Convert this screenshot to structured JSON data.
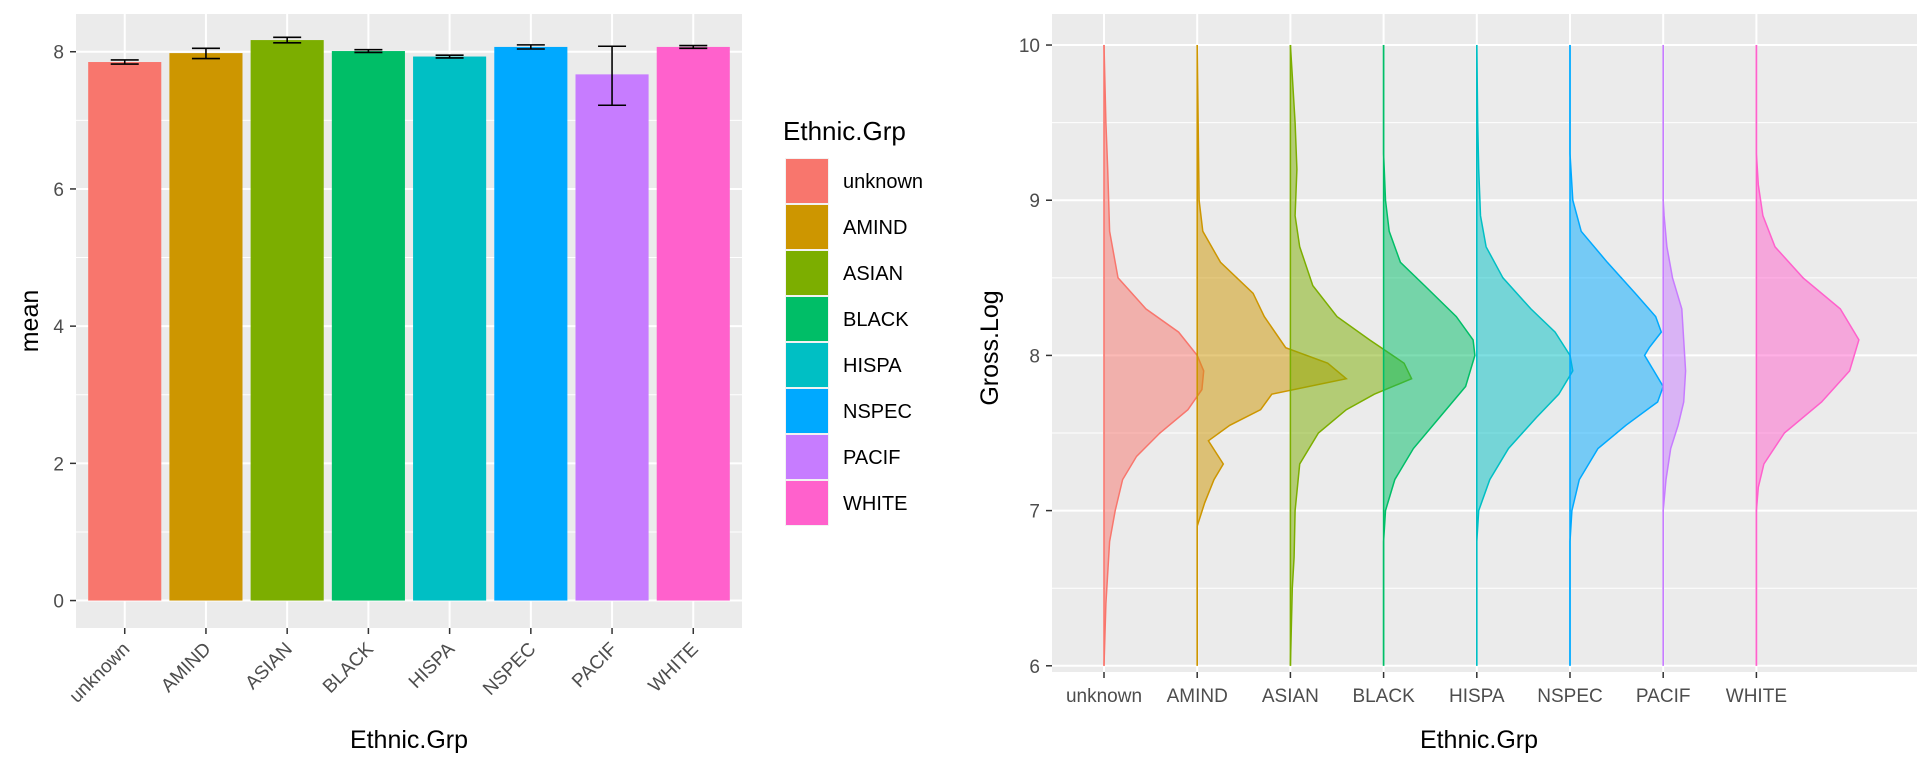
{
  "chart_data": [
    {
      "type": "bar",
      "title": "",
      "xlabel": "Ethnic.Grp",
      "ylabel": "mean",
      "ylim": [
        -0.4,
        8.55
      ],
      "yticks": [
        0,
        2,
        4,
        6,
        8
      ],
      "grid": true,
      "categories": [
        "unknown",
        "AMIND",
        "ASIAN",
        "BLACK",
        "HISPA",
        "NSPEC",
        "PACIF",
        "WHITE"
      ],
      "values": [
        7.85,
        7.98,
        8.17,
        8.01,
        7.93,
        8.07,
        7.67,
        8.07
      ],
      "error_low": [
        7.82,
        7.9,
        8.13,
        7.99,
        7.91,
        8.04,
        7.22,
        8.05
      ],
      "error_high": [
        7.88,
        8.05,
        8.21,
        8.03,
        7.95,
        8.1,
        8.08,
        8.09
      ],
      "colors": [
        "#F8766D",
        "#CD9600",
        "#7CAE00",
        "#00BE67",
        "#00BFC4",
        "#00A9FF",
        "#C77CFF",
        "#FF61CC"
      ],
      "legend": {
        "title": "Ethnic.Grp",
        "position": "right",
        "entries": [
          "unknown",
          "AMIND",
          "ASIAN",
          "BLACK",
          "HISPA",
          "NSPEC",
          "PACIF",
          "WHITE"
        ]
      }
    },
    {
      "type": "area",
      "subtype": "density-ridgeline (vertical half-violin)",
      "title": "",
      "xlabel": "Ethnic.Grp",
      "ylabel": "Gross.Log",
      "ylim": [
        5.96,
        10.2
      ],
      "yticks": [
        6,
        7,
        8,
        9,
        10
      ],
      "grid": true,
      "categories": [
        "unknown",
        "AMIND",
        "ASIAN",
        "BLACK",
        "HISPA",
        "NSPEC",
        "PACIF",
        "WHITE"
      ],
      "density_unit_note": "width values are densities scaled in category-spacing units (1 = distance between adjacent categories)",
      "series": [
        {
          "name": "unknown",
          "color": "#F8766D",
          "points": [
            [
              6.0,
              0
            ],
            [
              6.4,
              0.02
            ],
            [
              6.8,
              0.06
            ],
            [
              7.0,
              0.12
            ],
            [
              7.2,
              0.2
            ],
            [
              7.35,
              0.35
            ],
            [
              7.5,
              0.6
            ],
            [
              7.65,
              0.9
            ],
            [
              7.78,
              1.05
            ],
            [
              7.9,
              1.07
            ],
            [
              8.0,
              1.0
            ],
            [
              8.15,
              0.8
            ],
            [
              8.3,
              0.45
            ],
            [
              8.5,
              0.15
            ],
            [
              8.8,
              0.06
            ],
            [
              9.2,
              0.04
            ],
            [
              9.5,
              0.02
            ],
            [
              10.0,
              0
            ]
          ]
        },
        {
          "name": "AMIND",
          "color": "#CD9600",
          "points": [
            [
              6.0,
              0
            ],
            [
              6.9,
              0
            ],
            [
              7.05,
              0.08
            ],
            [
              7.2,
              0.18
            ],
            [
              7.3,
              0.28
            ],
            [
              7.45,
              0.12
            ],
            [
              7.55,
              0.35
            ],
            [
              7.65,
              0.68
            ],
            [
              7.75,
              0.8
            ],
            [
              7.85,
              1.6
            ],
            [
              7.95,
              1.4
            ],
            [
              8.05,
              0.95
            ],
            [
              8.25,
              0.72
            ],
            [
              8.4,
              0.6
            ],
            [
              8.6,
              0.25
            ],
            [
              8.8,
              0.06
            ],
            [
              9.0,
              0.02
            ],
            [
              10.0,
              0
            ]
          ]
        },
        {
          "name": "ASIAN",
          "color": "#7CAE00",
          "points": [
            [
              6.0,
              0
            ],
            [
              6.5,
              0.02
            ],
            [
              6.7,
              0.04
            ],
            [
              7.0,
              0.05
            ],
            [
              7.3,
              0.1
            ],
            [
              7.5,
              0.3
            ],
            [
              7.65,
              0.6
            ],
            [
              7.75,
              0.9
            ],
            [
              7.85,
              1.3
            ],
            [
              7.95,
              1.22
            ],
            [
              8.1,
              0.85
            ],
            [
              8.25,
              0.5
            ],
            [
              8.45,
              0.24
            ],
            [
              8.7,
              0.1
            ],
            [
              8.9,
              0.05
            ],
            [
              9.2,
              0.07
            ],
            [
              9.5,
              0.05
            ],
            [
              9.8,
              0.02
            ],
            [
              10.0,
              0
            ]
          ]
        },
        {
          "name": "BLACK",
          "color": "#00BE67",
          "points": [
            [
              6.0,
              0
            ],
            [
              6.8,
              0
            ],
            [
              7.0,
              0.02
            ],
            [
              7.2,
              0.12
            ],
            [
              7.4,
              0.32
            ],
            [
              7.6,
              0.6
            ],
            [
              7.8,
              0.88
            ],
            [
              8.0,
              0.98
            ],
            [
              8.1,
              0.96
            ],
            [
              8.25,
              0.78
            ],
            [
              8.45,
              0.44
            ],
            [
              8.6,
              0.18
            ],
            [
              8.8,
              0.06
            ],
            [
              9.0,
              0.02
            ],
            [
              9.3,
              0
            ],
            [
              10.0,
              0
            ]
          ]
        },
        {
          "name": "HISPA",
          "color": "#00BFC4",
          "points": [
            [
              6.0,
              0
            ],
            [
              6.8,
              0
            ],
            [
              7.0,
              0.02
            ],
            [
              7.2,
              0.14
            ],
            [
              7.4,
              0.34
            ],
            [
              7.6,
              0.64
            ],
            [
              7.75,
              0.88
            ],
            [
              7.9,
              1.03
            ],
            [
              8.0,
              1.0
            ],
            [
              8.15,
              0.84
            ],
            [
              8.3,
              0.58
            ],
            [
              8.5,
              0.28
            ],
            [
              8.7,
              0.1
            ],
            [
              8.9,
              0.04
            ],
            [
              9.2,
              0.02
            ],
            [
              9.5,
              0.01
            ],
            [
              10.0,
              0
            ]
          ]
        },
        {
          "name": "NSPEC",
          "color": "#00A9FF",
          "points": [
            [
              6.0,
              0
            ],
            [
              6.8,
              0
            ],
            [
              7.0,
              0.02
            ],
            [
              7.2,
              0.1
            ],
            [
              7.4,
              0.3
            ],
            [
              7.55,
              0.6
            ],
            [
              7.7,
              0.94
            ],
            [
              7.8,
              1.0
            ],
            [
              7.9,
              0.9
            ],
            [
              8.0,
              0.8
            ],
            [
              8.05,
              0.85
            ],
            [
              8.15,
              0.98
            ],
            [
              8.25,
              0.92
            ],
            [
              8.4,
              0.7
            ],
            [
              8.6,
              0.4
            ],
            [
              8.8,
              0.12
            ],
            [
              9.0,
              0.03
            ],
            [
              9.3,
              0
            ],
            [
              10.0,
              0
            ]
          ]
        },
        {
          "name": "PACIF",
          "color": "#C77CFF",
          "points": [
            [
              6.0,
              0
            ],
            [
              7.0,
              0
            ],
            [
              7.2,
              0.03
            ],
            [
              7.4,
              0.08
            ],
            [
              7.55,
              0.16
            ],
            [
              7.7,
              0.22
            ],
            [
              7.9,
              0.24
            ],
            [
              8.1,
              0.22
            ],
            [
              8.3,
              0.2
            ],
            [
              8.5,
              0.1
            ],
            [
              8.7,
              0.04
            ],
            [
              8.9,
              0.01
            ],
            [
              9.0,
              0
            ],
            [
              10.0,
              0
            ]
          ]
        },
        {
          "name": "WHITE",
          "color": "#FF61CC",
          "points": [
            [
              6.0,
              0
            ],
            [
              7.0,
              0
            ],
            [
              7.15,
              0.02
            ],
            [
              7.3,
              0.08
            ],
            [
              7.5,
              0.3
            ],
            [
              7.7,
              0.7
            ],
            [
              7.9,
              1.0
            ],
            [
              8.1,
              1.1
            ],
            [
              8.3,
              0.9
            ],
            [
              8.5,
              0.5
            ],
            [
              8.7,
              0.2
            ],
            [
              8.9,
              0.07
            ],
            [
              9.1,
              0.02
            ],
            [
              9.3,
              0
            ],
            [
              10.0,
              0
            ]
          ]
        }
      ]
    }
  ]
}
